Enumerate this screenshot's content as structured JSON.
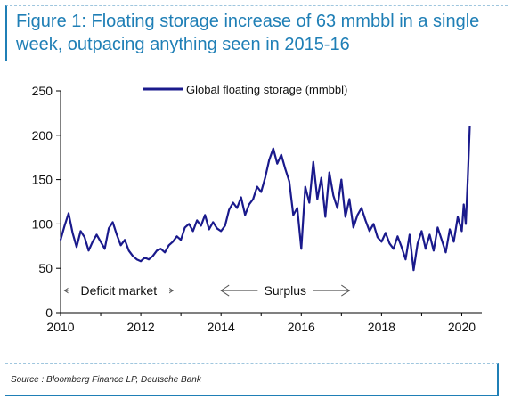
{
  "figure": {
    "title": "Figure 1: Floating storage increase of 63 mmbbl in a single week, outpacing anything seen in 2015-16",
    "source": "Source : Bloomberg Finance LP, Deutsche Bank"
  },
  "colors": {
    "series": "#1a1a8c",
    "title": "#1f7fb6",
    "axis": "#000000",
    "annotation": "#555555"
  },
  "chart_data": {
    "type": "line",
    "xlim": [
      2010,
      2020.5
    ],
    "ylim": [
      0,
      250
    ],
    "xticks": [
      2010,
      2012,
      2014,
      2016,
      2018,
      2020
    ],
    "yticks": [
      0,
      50,
      100,
      150,
      200,
      250
    ],
    "legend": "top-center",
    "grid": false,
    "annotations": [
      {
        "label": "Deficit market",
        "from": 2010.1,
        "to": 2012.8,
        "y": 25
      },
      {
        "label": "Surplus",
        "from": 2014.0,
        "to": 2017.2,
        "y": 25
      }
    ],
    "series": [
      {
        "name": "Global floating storage (mmbbl)",
        "x": [
          2010.0,
          2010.1,
          2010.2,
          2010.3,
          2010.4,
          2010.5,
          2010.6,
          2010.7,
          2010.8,
          2010.9,
          2011.0,
          2011.1,
          2011.2,
          2011.3,
          2011.4,
          2011.5,
          2011.6,
          2011.7,
          2011.8,
          2011.9,
          2012.0,
          2012.1,
          2012.2,
          2012.3,
          2012.4,
          2012.5,
          2012.6,
          2012.7,
          2012.8,
          2012.9,
          2013.0,
          2013.1,
          2013.2,
          2013.3,
          2013.4,
          2013.5,
          2013.6,
          2013.7,
          2013.8,
          2013.9,
          2014.0,
          2014.1,
          2014.2,
          2014.3,
          2014.4,
          2014.5,
          2014.6,
          2014.7,
          2014.8,
          2014.9,
          2015.0,
          2015.1,
          2015.2,
          2015.3,
          2015.4,
          2015.5,
          2015.6,
          2015.7,
          2015.8,
          2015.9,
          2016.0,
          2016.1,
          2016.2,
          2016.3,
          2016.4,
          2016.5,
          2016.6,
          2016.7,
          2016.8,
          2016.9,
          2017.0,
          2017.1,
          2017.2,
          2017.3,
          2017.4,
          2017.5,
          2017.6,
          2017.7,
          2017.8,
          2017.9,
          2018.0,
          2018.1,
          2018.2,
          2018.3,
          2018.4,
          2018.5,
          2018.6,
          2018.7,
          2018.8,
          2018.9,
          2019.0,
          2019.1,
          2019.2,
          2019.3,
          2019.4,
          2019.5,
          2019.6,
          2019.7,
          2019.8,
          2019.9,
          2020.0,
          2020.05,
          2020.1,
          2020.15,
          2020.2
        ],
        "values": [
          82,
          98,
          112,
          90,
          74,
          92,
          85,
          70,
          80,
          88,
          80,
          72,
          95,
          102,
          88,
          76,
          82,
          70,
          64,
          60,
          58,
          62,
          60,
          64,
          70,
          72,
          68,
          76,
          80,
          86,
          82,
          96,
          100,
          92,
          104,
          98,
          110,
          94,
          102,
          95,
          92,
          98,
          116,
          124,
          118,
          130,
          110,
          122,
          128,
          142,
          136,
          152,
          172,
          185,
          168,
          178,
          162,
          148,
          110,
          118,
          72,
          142,
          124,
          170,
          128,
          152,
          108,
          158,
          132,
          118,
          150,
          108,
          128,
          96,
          110,
          118,
          104,
          92,
          100,
          85,
          80,
          90,
          78,
          72,
          86,
          74,
          60,
          88,
          48,
          78,
          92,
          72,
          88,
          70,
          96,
          82,
          68,
          94,
          80,
          108,
          92,
          122,
          100,
          150,
          210
        ]
      }
    ]
  }
}
